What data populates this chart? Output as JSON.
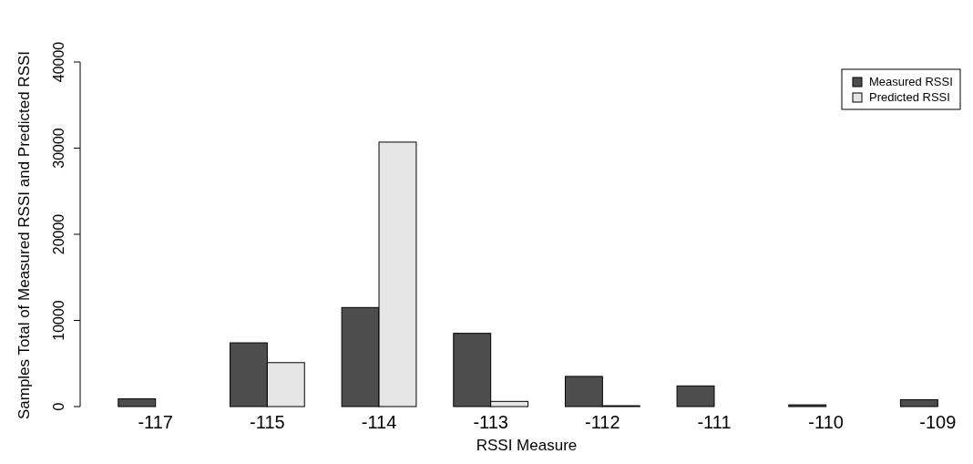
{
  "chart_data": {
    "type": "bar",
    "xlabel": "RSSI Measure",
    "ylabel": "Samples Total of Measured RSSI and Predicted RSSI",
    "categories": [
      "-117",
      "-115",
      "-114",
      "-113",
      "-112",
      "-111",
      "-110",
      "-109"
    ],
    "series": [
      {
        "name": "Measured RSSI",
        "color": "#4d4d4d",
        "values": [
          900,
          7400,
          11500,
          8500,
          3500,
          2400,
          200,
          800
        ]
      },
      {
        "name": "Predicted RSSI",
        "color": "#e6e6e6",
        "values": [
          0,
          5100,
          30700,
          600,
          100,
          0,
          0,
          0
        ]
      }
    ],
    "ylim": [
      0,
      40000
    ],
    "yticks": [
      0,
      10000,
      20000,
      30000,
      40000
    ],
    "legend": "top right"
  }
}
